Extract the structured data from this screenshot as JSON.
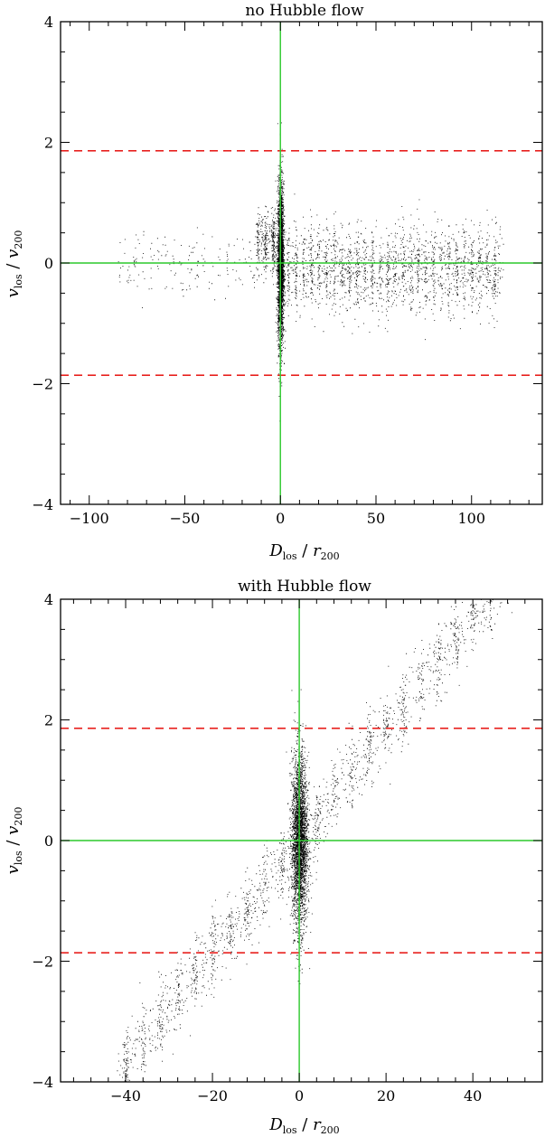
{
  "chart_data": [
    {
      "type": "scatter",
      "title": "no Hubble flow",
      "xlabel": {
        "main": "D",
        "sub": "los",
        "sep": " / ",
        "main2": "r",
        "sub2": "200"
      },
      "ylabel": {
        "main": "v",
        "sub": "los",
        "sep": " / ",
        "main2": "v",
        "sub2": "200"
      },
      "xlim": [
        -115,
        137
      ],
      "ylim": [
        -4,
        4
      ],
      "xticks": [
        -100,
        -50,
        0,
        50,
        100
      ],
      "xtick_labels": [
        "−100",
        "−50",
        "0",
        "50",
        "100"
      ],
      "yticks": [
        -4,
        -2,
        0,
        2,
        4
      ],
      "ytick_labels": [
        "−4",
        "−2",
        "0",
        "2",
        "4"
      ],
      "reference_lines": {
        "horizontal_dashed": [
          1.86,
          -1.86
        ],
        "horizontal_solid": [
          0
        ],
        "vertical_solid": [
          0
        ]
      },
      "colors": {
        "points": "#000000",
        "dashed": "#e8221f",
        "solid": "#2cc82c"
      },
      "point_groups": [
        {
          "name": "core",
          "x_center": 0,
          "x_spread": 0.8,
          "y_center": 0,
          "y_spread": 0.65,
          "count": 3200
        },
        {
          "name": "left-clumps",
          "x_range": [
            -12,
            -2
          ],
          "y_center": 0.35,
          "y_spread": 0.25,
          "count": 350
        },
        {
          "name": "right-stream",
          "x_range": [
            3,
            115
          ],
          "y_center": -0.1,
          "y_spread": 0.35,
          "count": 2200
        },
        {
          "name": "far-left",
          "x_range": [
            -85,
            -12
          ],
          "y_center": 0,
          "y_spread": 0.25,
          "count": 180
        }
      ]
    },
    {
      "type": "scatter",
      "title": "with Hubble flow",
      "xlabel": {
        "main": "D",
        "sub": "los",
        "sep": " / ",
        "main2": "r",
        "sub2": "200"
      },
      "ylabel": {
        "main": "v",
        "sub": "los",
        "sep": " / ",
        "main2": "v",
        "sub2": "200"
      },
      "xlim": [
        -55,
        56
      ],
      "ylim": [
        -4,
        4
      ],
      "xticks": [
        -40,
        -20,
        0,
        20,
        40
      ],
      "xtick_labels": [
        "−40",
        "−20",
        "0",
        "20",
        "40"
      ],
      "yticks": [
        -4,
        -2,
        0,
        2,
        4
      ],
      "ytick_labels": [
        "−4",
        "−2",
        "0",
        "2",
        "4"
      ],
      "reference_lines": {
        "horizontal_dashed": [
          1.86,
          -1.86
        ],
        "horizontal_solid": [
          0
        ],
        "vertical_solid": [
          0
        ]
      },
      "colors": {
        "points": "#000000",
        "dashed": "#e8221f",
        "solid": "#2cc82c"
      },
      "hubble_slope": 0.093,
      "point_groups": [
        {
          "name": "core",
          "x_center": 0,
          "x_spread": 0.9,
          "y_center": 0,
          "y_spread": 0.7,
          "count": 3200
        },
        {
          "name": "hubble-band",
          "x_range": [
            -42,
            55
          ],
          "y_spread": 0.3,
          "count": 2600
        }
      ]
    }
  ]
}
